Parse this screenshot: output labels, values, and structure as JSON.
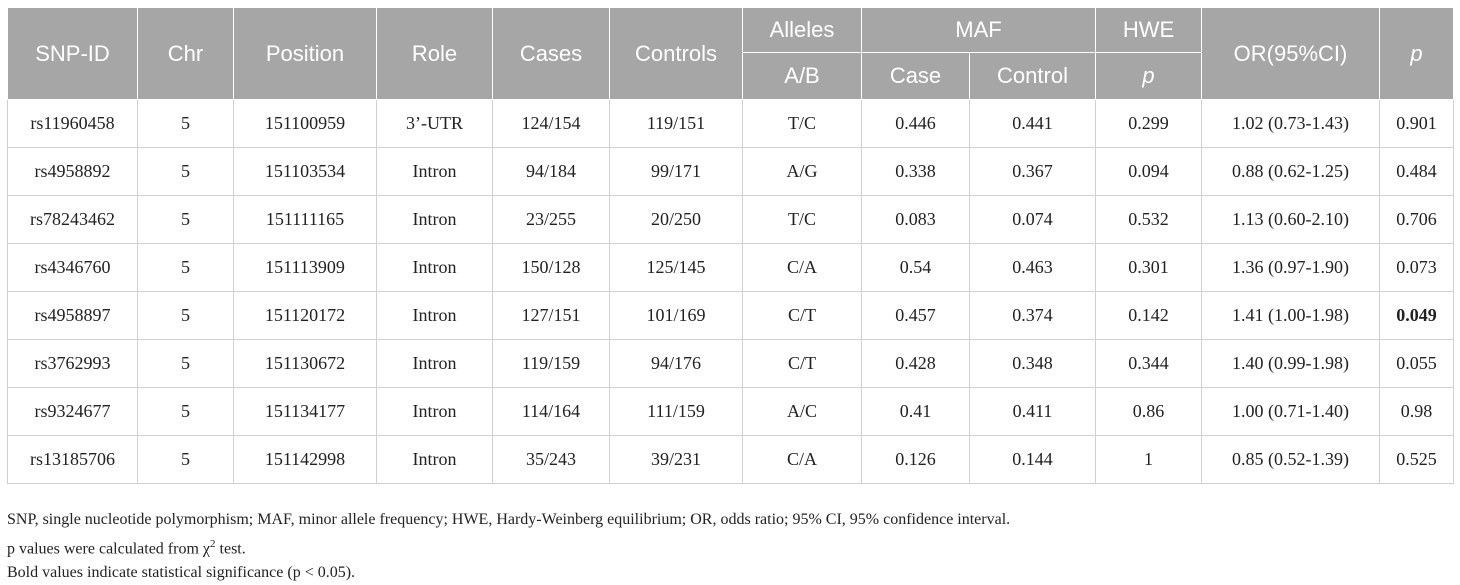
{
  "header": {
    "snp_id": "SNP-ID",
    "chr": "Chr",
    "position": "Position",
    "role": "Role",
    "cases": "Cases",
    "controls": "Controls",
    "alleles": "Alleles",
    "alleles_sub": "A/B",
    "maf": "MAF",
    "maf_case": "Case",
    "maf_control": "Control",
    "hwe": "HWE",
    "hwe_sub": "p",
    "or": "OR(95%CI)",
    "p": "p"
  },
  "rows": [
    {
      "snp": "rs11960458",
      "chr": "5",
      "position": "151100959",
      "role": "3’-UTR",
      "cases": "124/154",
      "controls": "119/151",
      "alleles": "T/C",
      "maf_case": "0.446",
      "maf_control": "0.441",
      "hwe": "0.299",
      "or": "1.02 (0.73-1.43)",
      "p": "0.901",
      "bold": false
    },
    {
      "snp": "rs4958892",
      "chr": "5",
      "position": "151103534",
      "role": "Intron",
      "cases": "94/184",
      "controls": "99/171",
      "alleles": "A/G",
      "maf_case": "0.338",
      "maf_control": "0.367",
      "hwe": "0.094",
      "or": "0.88 (0.62-1.25)",
      "p": "0.484",
      "bold": false
    },
    {
      "snp": "rs78243462",
      "chr": "5",
      "position": "151111165",
      "role": "Intron",
      "cases": "23/255",
      "controls": "20/250",
      "alleles": "T/C",
      "maf_case": "0.083",
      "maf_control": "0.074",
      "hwe": "0.532",
      "or": "1.13 (0.60-2.10)",
      "p": "0.706",
      "bold": false
    },
    {
      "snp": "rs4346760",
      "chr": "5",
      "position": "151113909",
      "role": "Intron",
      "cases": "150/128",
      "controls": "125/145",
      "alleles": "C/A",
      "maf_case": "0.54",
      "maf_control": "0.463",
      "hwe": "0.301",
      "or": "1.36 (0.97-1.90)",
      "p": "0.073",
      "bold": false
    },
    {
      "snp": "rs4958897",
      "chr": "5",
      "position": "151120172",
      "role": "Intron",
      "cases": "127/151",
      "controls": "101/169",
      "alleles": "C/T",
      "maf_case": "0.457",
      "maf_control": "0.374",
      "hwe": "0.142",
      "or": "1.41 (1.00-1.98)",
      "p": "0.049",
      "bold": true
    },
    {
      "snp": "rs3762993",
      "chr": "5",
      "position": "151130672",
      "role": "Intron",
      "cases": "119/159",
      "controls": "94/176",
      "alleles": "C/T",
      "maf_case": "0.428",
      "maf_control": "0.348",
      "hwe": "0.344",
      "or": "1.40 (0.99-1.98)",
      "p": "0.055",
      "bold": false
    },
    {
      "snp": "rs9324677",
      "chr": "5",
      "position": "151134177",
      "role": "Intron",
      "cases": "114/164",
      "controls": "111/159",
      "alleles": "A/C",
      "maf_case": "0.41",
      "maf_control": "0.411",
      "hwe": "0.86",
      "or": "1.00 (0.71-1.40)",
      "p": "0.98",
      "bold": false
    },
    {
      "snp": "rs13185706",
      "chr": "5",
      "position": "151142998",
      "role": "Intron",
      "cases": "35/243",
      "controls": "39/231",
      "alleles": "C/A",
      "maf_case": "0.126",
      "maf_control": "0.144",
      "hwe": "1",
      "or": "0.85 (0.52-1.39)",
      "p": "0.525",
      "bold": false
    }
  ],
  "notes": {
    "line1": "SNP, single nucleotide polymorphism; MAF, minor allele frequency; HWE, Hardy-Weinberg equilibrium; OR, odds ratio; 95% CI, 95% confidence interval.",
    "line2_prefix": "p values were calculated from χ",
    "line2_sup": "2",
    "line2_suffix": " test.",
    "line3": "Bold values indicate statistical significance (p < 0.05)."
  },
  "colors": {
    "header_bg": "#a6a6a6",
    "header_text": "#ffffff",
    "border": "#d0d0d0"
  }
}
